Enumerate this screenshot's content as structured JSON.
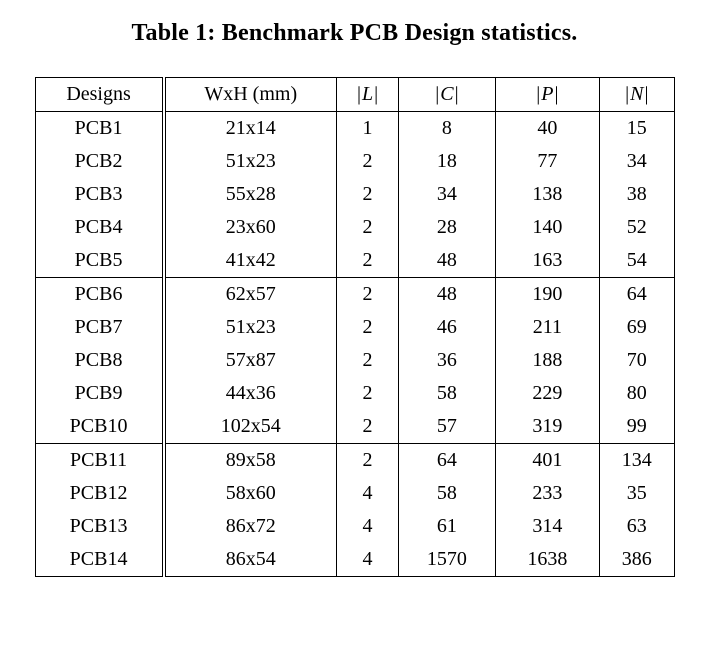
{
  "caption": {
    "text": "Table 1: Benchmark PCB Design statistics."
  },
  "table": {
    "headers": [
      "Designs",
      "WxH (mm)",
      "|L|",
      "|C|",
      "|P|",
      "|N|"
    ],
    "groups": [
      [
        [
          "PCB1",
          "21x14",
          "1",
          "8",
          "40",
          "15"
        ],
        [
          "PCB2",
          "51x23",
          "2",
          "18",
          "77",
          "34"
        ],
        [
          "PCB3",
          "55x28",
          "2",
          "34",
          "138",
          "38"
        ],
        [
          "PCB4",
          "23x60",
          "2",
          "28",
          "140",
          "52"
        ],
        [
          "PCB5",
          "41x42",
          "2",
          "48",
          "163",
          "54"
        ]
      ],
      [
        [
          "PCB6",
          "62x57",
          "2",
          "48",
          "190",
          "64"
        ],
        [
          "PCB7",
          "51x23",
          "2",
          "46",
          "211",
          "69"
        ],
        [
          "PCB8",
          "57x87",
          "2",
          "36",
          "188",
          "70"
        ],
        [
          "PCB9",
          "44x36",
          "2",
          "58",
          "229",
          "80"
        ],
        [
          "PCB10",
          "102x54",
          "2",
          "57",
          "319",
          "99"
        ]
      ],
      [
        [
          "PCB11",
          "89x58",
          "2",
          "64",
          "401",
          "134"
        ],
        [
          "PCB12",
          "58x60",
          "4",
          "58",
          "233",
          "35"
        ],
        [
          "PCB13",
          "86x72",
          "4",
          "61",
          "314",
          "63"
        ],
        [
          "PCB14",
          "86x54",
          "4",
          "1570",
          "1638",
          "386"
        ]
      ]
    ]
  }
}
